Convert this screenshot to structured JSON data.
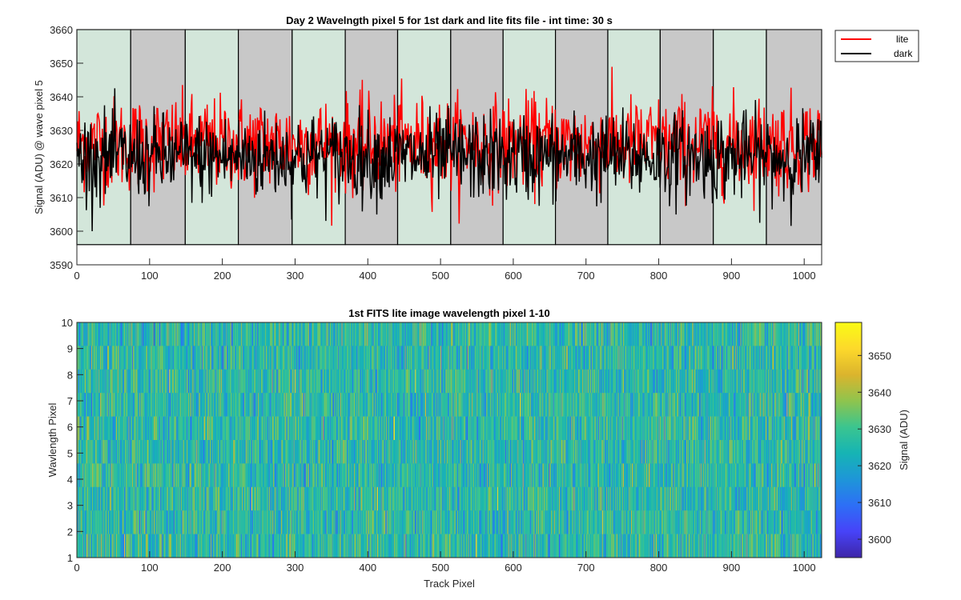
{
  "chart_data": [
    {
      "type": "line",
      "title": "Day 2 Wavelngth pixel 5 for 1st dark and lite fits file - int time: 30 s",
      "xlabel": "",
      "ylabel": "Signal (ADU) @ wave pixel 5",
      "xlim": [
        0,
        1024
      ],
      "ylim": [
        3590,
        3660
      ],
      "xticks": [
        0,
        100,
        200,
        300,
        400,
        500,
        600,
        700,
        800,
        900,
        1000
      ],
      "yticks": [
        3590,
        3600,
        3610,
        3620,
        3630,
        3640,
        3650,
        3660
      ],
      "legend": {
        "placement": "outside-top-right",
        "entries": [
          "lite",
          "dark"
        ]
      },
      "series": [
        {
          "name": "lite",
          "color": "#ff0000",
          "n_points": 1024,
          "mean": 3626,
          "std": 7,
          "min": 3596,
          "max": 3657
        },
        {
          "name": "dark",
          "color": "#000000",
          "n_points": 1024,
          "mean": 3622,
          "std": 6.5,
          "min": 3600,
          "max": 3655
        }
      ],
      "shaded_regions": {
        "ymin": 3596,
        "ymax": 3660,
        "boundaries": [
          0,
          74,
          149,
          222,
          296,
          369,
          441,
          514,
          586,
          658,
          730,
          802,
          875,
          948,
          1024
        ],
        "colors": [
          "#d3e6da",
          "#c8c8c8"
        ],
        "pattern": [
          "light",
          "dark",
          "light",
          "dark",
          "light",
          "dark",
          "light",
          "dark",
          "light",
          "dark",
          "light",
          "dark",
          "light",
          "dark"
        ]
      }
    },
    {
      "type": "heatmap",
      "title": "1st FITS lite image wavelength pixel 1-10",
      "xlabel": "Track Pixel",
      "ylabel": "Wavlength Pixel",
      "xlim": [
        0,
        1024
      ],
      "ylim": [
        1,
        10
      ],
      "xticks": [
        0,
        100,
        200,
        300,
        400,
        500,
        600,
        700,
        800,
        900,
        1000
      ],
      "yticks": [
        1,
        2,
        3,
        4,
        5,
        6,
        7,
        8,
        9,
        10
      ],
      "rows": 10,
      "cols": 1024,
      "mean": 3626,
      "std": 7,
      "colorbar": {
        "label": "Signal (ADU)",
        "range": [
          3595,
          3659
        ],
        "ticks": [
          3600,
          3610,
          3620,
          3630,
          3640,
          3650
        ],
        "colormap": "parula",
        "stops": [
          "#3e26a8",
          "#4743f8",
          "#2d6ff6",
          "#1e96d8",
          "#16b4b4",
          "#3bc58f",
          "#8fc44d",
          "#dbb42d",
          "#fdd92b",
          "#f9fb15"
        ]
      }
    }
  ]
}
